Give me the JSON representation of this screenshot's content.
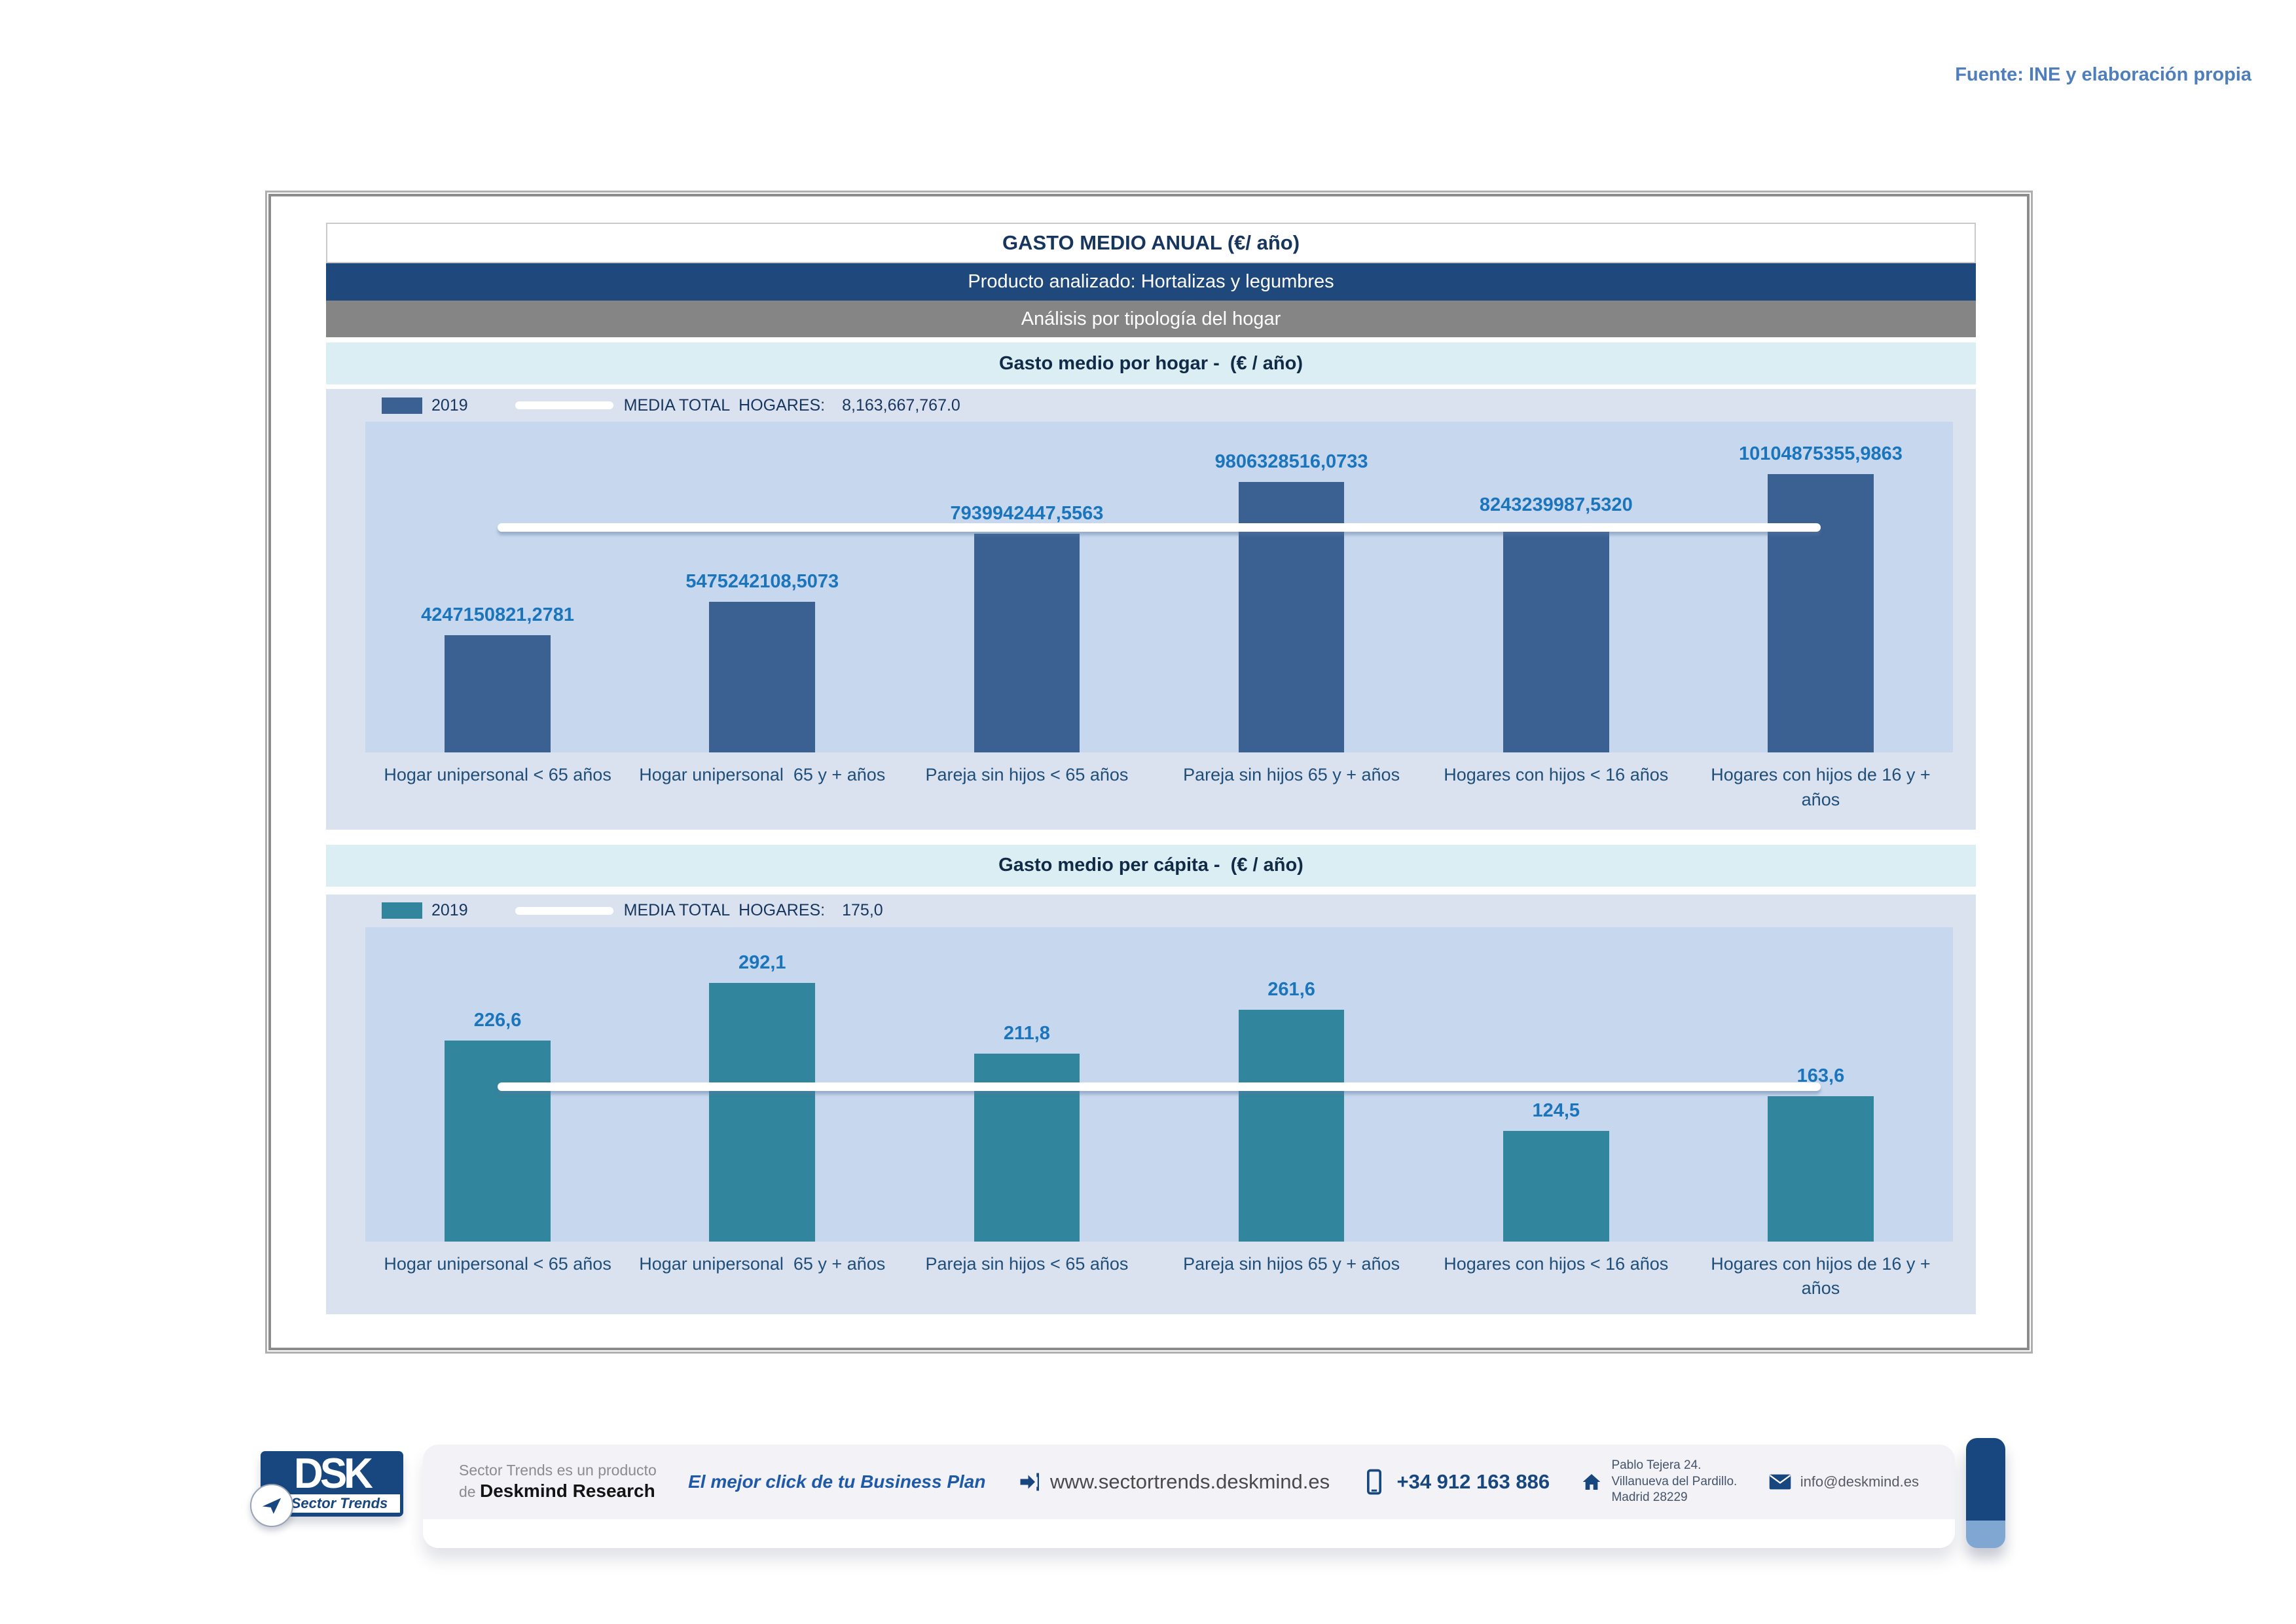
{
  "page": {
    "source_note": "Fuente: INE y elaboración propia",
    "title": "GASTO MEDIO ANUAL (€/ año)",
    "product_line": "Producto analizado: Hortalizas y legumbres",
    "analysis_line": "Análisis por tipología del hogar"
  },
  "chart_data": [
    {
      "type": "bar",
      "title": "Gasto medio por hogar -  (€ / año)",
      "legend": {
        "series": "2019",
        "media_label": "MEDIA TOTAL  HOGARES:",
        "media_value_text": "8,163,667,767.0",
        "position": "top-left"
      },
      "categories": [
        "Hogar unipersonal < 65 años",
        "Hogar unipersonal  65 y + años",
        "Pareja sin hijos < 65 años",
        "Pareja sin hijos 65 y + años",
        "Hogares con hijos < 16 años",
        "Hogares con hijos de 16 y + años"
      ],
      "values": [
        4247150821.2781,
        5475242108.5073,
        7939942447.5563,
        9806328516.0733,
        8243239987.532,
        10104875355.9863
      ],
      "value_labels": [
        "4247150821,2781",
        "5475242108,5073",
        "7939942447,5563",
        "9806328516,0733",
        "8243239987,5320",
        "10104875355,9863"
      ],
      "media_value": 8163667767.0,
      "ylim": [
        0,
        12000000000
      ],
      "xlabel": "",
      "ylabel": "",
      "grid": false,
      "bar_color": "#3A6192",
      "media_line_color": "#FFFFFF"
    },
    {
      "type": "bar",
      "title": "Gasto medio per cápita -  (€ / año)",
      "legend": {
        "series": "2019",
        "media_label": "MEDIA TOTAL  HOGARES:",
        "media_value_text": "175,0",
        "position": "top-left"
      },
      "categories": [
        "Hogar unipersonal < 65 años",
        "Hogar unipersonal  65 y + años",
        "Pareja sin hijos < 65 años",
        "Pareja sin hijos 65 y + años",
        "Hogares con hijos < 16 años",
        "Hogares con hijos de 16 y + años"
      ],
      "values": [
        226.6,
        292.1,
        211.8,
        261.6,
        124.5,
        163.6
      ],
      "value_labels": [
        "226,6",
        "292,1",
        "211,8",
        "261,6",
        "124,5",
        "163,6"
      ],
      "media_value": 175.0,
      "ylim": [
        0,
        355
      ],
      "xlabel": "",
      "ylabel": "",
      "grid": false,
      "bar_color": "#31859C",
      "media_line_color": "#FFFFFF"
    }
  ],
  "footer": {
    "logo": {
      "acronym": "DSK",
      "brand": "Sector Trends"
    },
    "product_line1": "Sector Trends es un producto",
    "product_line2_prefix": "de",
    "product_line2_brand": "Deskmind Research",
    "slogan": "El mejor click de tu Business Plan",
    "website": "www.sectortrends.deskmind.es",
    "phone": "+34 912 163 886",
    "address_line1": "Pablo Tejera 24.",
    "address_line2": "Villanueva del Pardillo.",
    "address_line3": "Madrid 28229",
    "email": "info@deskmind.es"
  },
  "colors": {
    "navy_band": "#1F497D",
    "gray_band": "#858585",
    "cyan_band": "#DAEEF3",
    "panel_bg": "#DAE2F0",
    "plot_bg": "#C7D8EE",
    "bar_blue": "#3A6192",
    "bar_teal": "#31859C",
    "value_label_blue": "#1B75BD",
    "category_label_navy": "#1F4E79",
    "source_note_blue": "#4E7EBB",
    "footer_navy": "#17477E"
  }
}
